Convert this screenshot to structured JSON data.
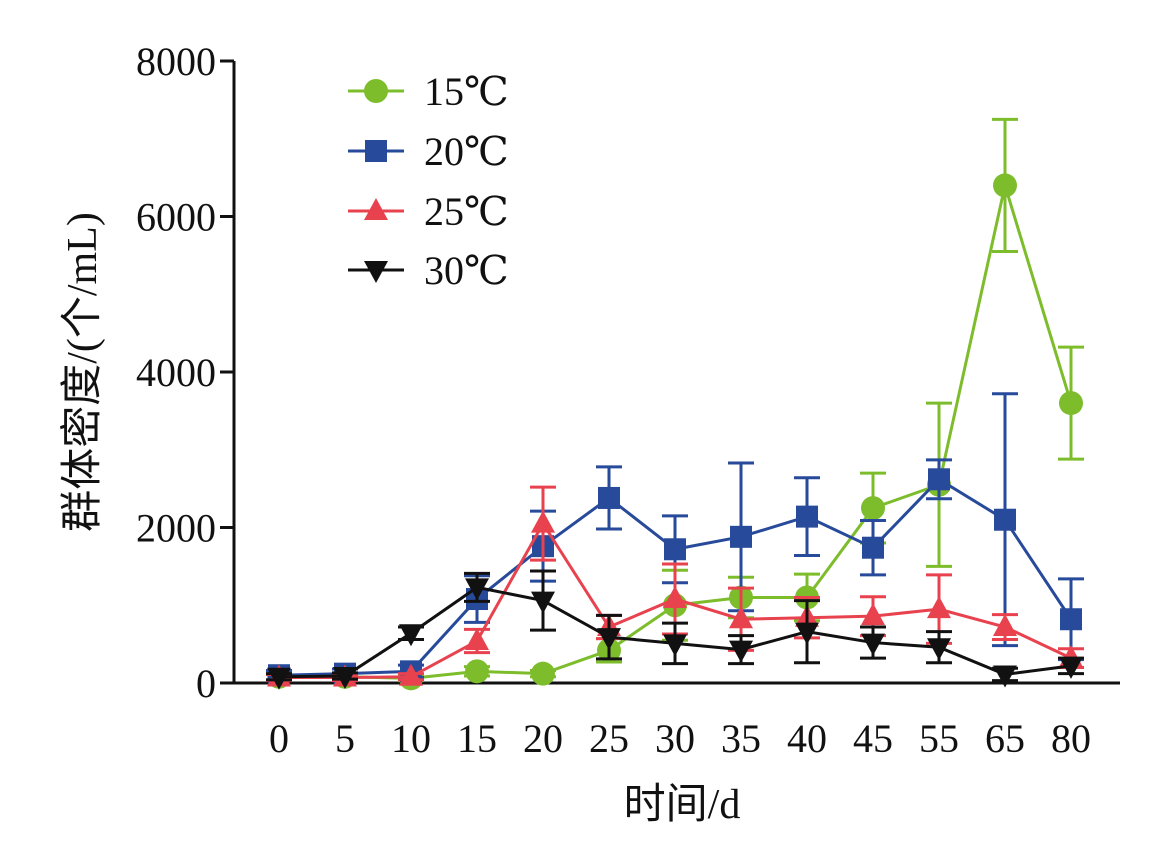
{
  "chart_data": {
    "type": "line",
    "categories": [
      "0",
      "5",
      "10",
      "15",
      "20",
      "25",
      "30",
      "35",
      "40",
      "45",
      "55",
      "65",
      "80"
    ],
    "xlabel": "时间/d",
    "ylabel": "群体密度/(个/mL)",
    "ylim": [
      0,
      8000
    ],
    "yticks": [
      0,
      2000,
      4000,
      6000,
      8000
    ],
    "legend_position": "top-left",
    "series": [
      {
        "name": "15℃",
        "color": "#7dbd2c",
        "marker": "circle",
        "values": [
          80,
          80,
          60,
          150,
          120,
          420,
          1000,
          1100,
          1100,
          2250,
          2550,
          6400,
          3600
        ],
        "errors": [
          40,
          40,
          30,
          60,
          40,
          150,
          450,
          260,
          300,
          450,
          1050,
          850,
          720
        ]
      },
      {
        "name": "20℃",
        "color": "#274a9a",
        "marker": "square",
        "values": [
          100,
          120,
          150,
          1080,
          1760,
          2380,
          1720,
          1880,
          2140,
          1740,
          2620,
          2100,
          820
        ],
        "errors": [
          60,
          60,
          80,
          300,
          450,
          400,
          430,
          950,
          500,
          350,
          250,
          1620,
          520
        ]
      },
      {
        "name": "25℃",
        "color": "#e8424f",
        "marker": "triangle-up",
        "values": [
          70,
          70,
          80,
          540,
          2050,
          720,
          1080,
          820,
          840,
          860,
          950,
          720,
          320
        ],
        "errors": [
          40,
          40,
          40,
          150,
          470,
          150,
          450,
          400,
          260,
          250,
          440,
          160,
          120
        ]
      },
      {
        "name": "30℃",
        "color": "#111111",
        "marker": "triangle-down",
        "values": [
          80,
          90,
          640,
          1230,
          1060,
          590,
          510,
          430,
          660,
          520,
          460,
          110,
          220
        ],
        "errors": [
          40,
          40,
          80,
          180,
          380,
          280,
          260,
          180,
          400,
          200,
          200,
          80,
          100
        ]
      }
    ]
  }
}
